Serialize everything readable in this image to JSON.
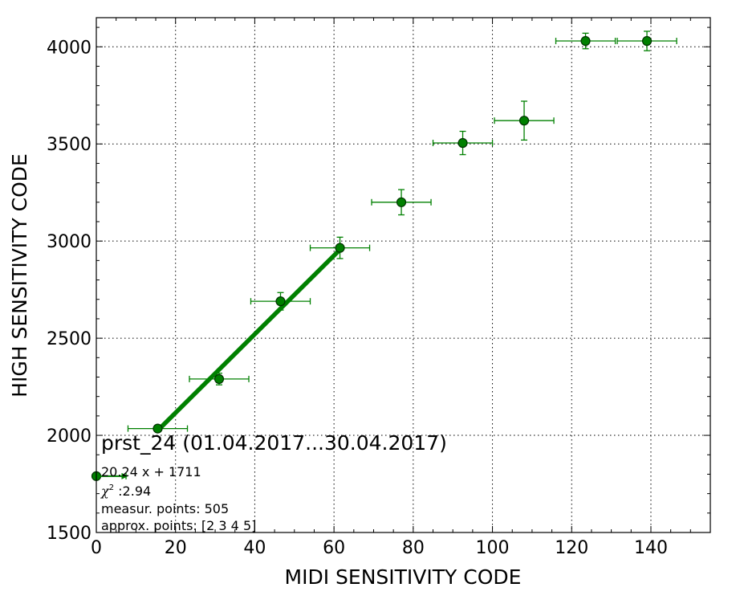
{
  "chart_data": {
    "type": "scatter",
    "title": "",
    "xlabel": "MIDI SENSITIVITY CODE",
    "ylabel": "HIGH SENSITIVITY CODE",
    "xlim": [
      0,
      155
    ],
    "ylim": [
      1500,
      4150
    ],
    "xticks": [
      0,
      20,
      40,
      60,
      80,
      100,
      120,
      140
    ],
    "yticks": [
      1500,
      2000,
      2500,
      3000,
      3500,
      4000
    ],
    "grid": true,
    "colors": {
      "series": "#008000",
      "fit": "#008000",
      "marker_edge": "#003300"
    },
    "series": [
      {
        "x": [
          0,
          15.5,
          31,
          46.5,
          61.5,
          77,
          92.5,
          108,
          123.5,
          139
        ],
        "y": [
          1790,
          2035,
          2290,
          2690,
          2965,
          3200,
          3505,
          3620,
          4030,
          4030
        ],
        "xerr": [
          7.5,
          7.5,
          7.5,
          7.5,
          7.5,
          7.5,
          7.5,
          7.5,
          7.5,
          7.5
        ],
        "yerr": [
          10,
          15,
          30,
          45,
          55,
          65,
          60,
          100,
          40,
          50
        ]
      }
    ],
    "fit_line": {
      "x": [
        15.5,
        61.5
      ],
      "y": [
        2025,
        2956
      ]
    },
    "arrow": {
      "x": [
        0,
        8
      ],
      "y": [
        1790,
        1790
      ]
    },
    "annotations": {
      "title": "prst_24 (01.04.2017...30.04.2017)",
      "equation": "20.24 x + 1711",
      "chi_label": "χ",
      "chi_sup": "2",
      "chi_value": " :2.94",
      "measur": "measur. points: 505",
      "approx": "approx. points: [2 3 4 5]"
    }
  }
}
